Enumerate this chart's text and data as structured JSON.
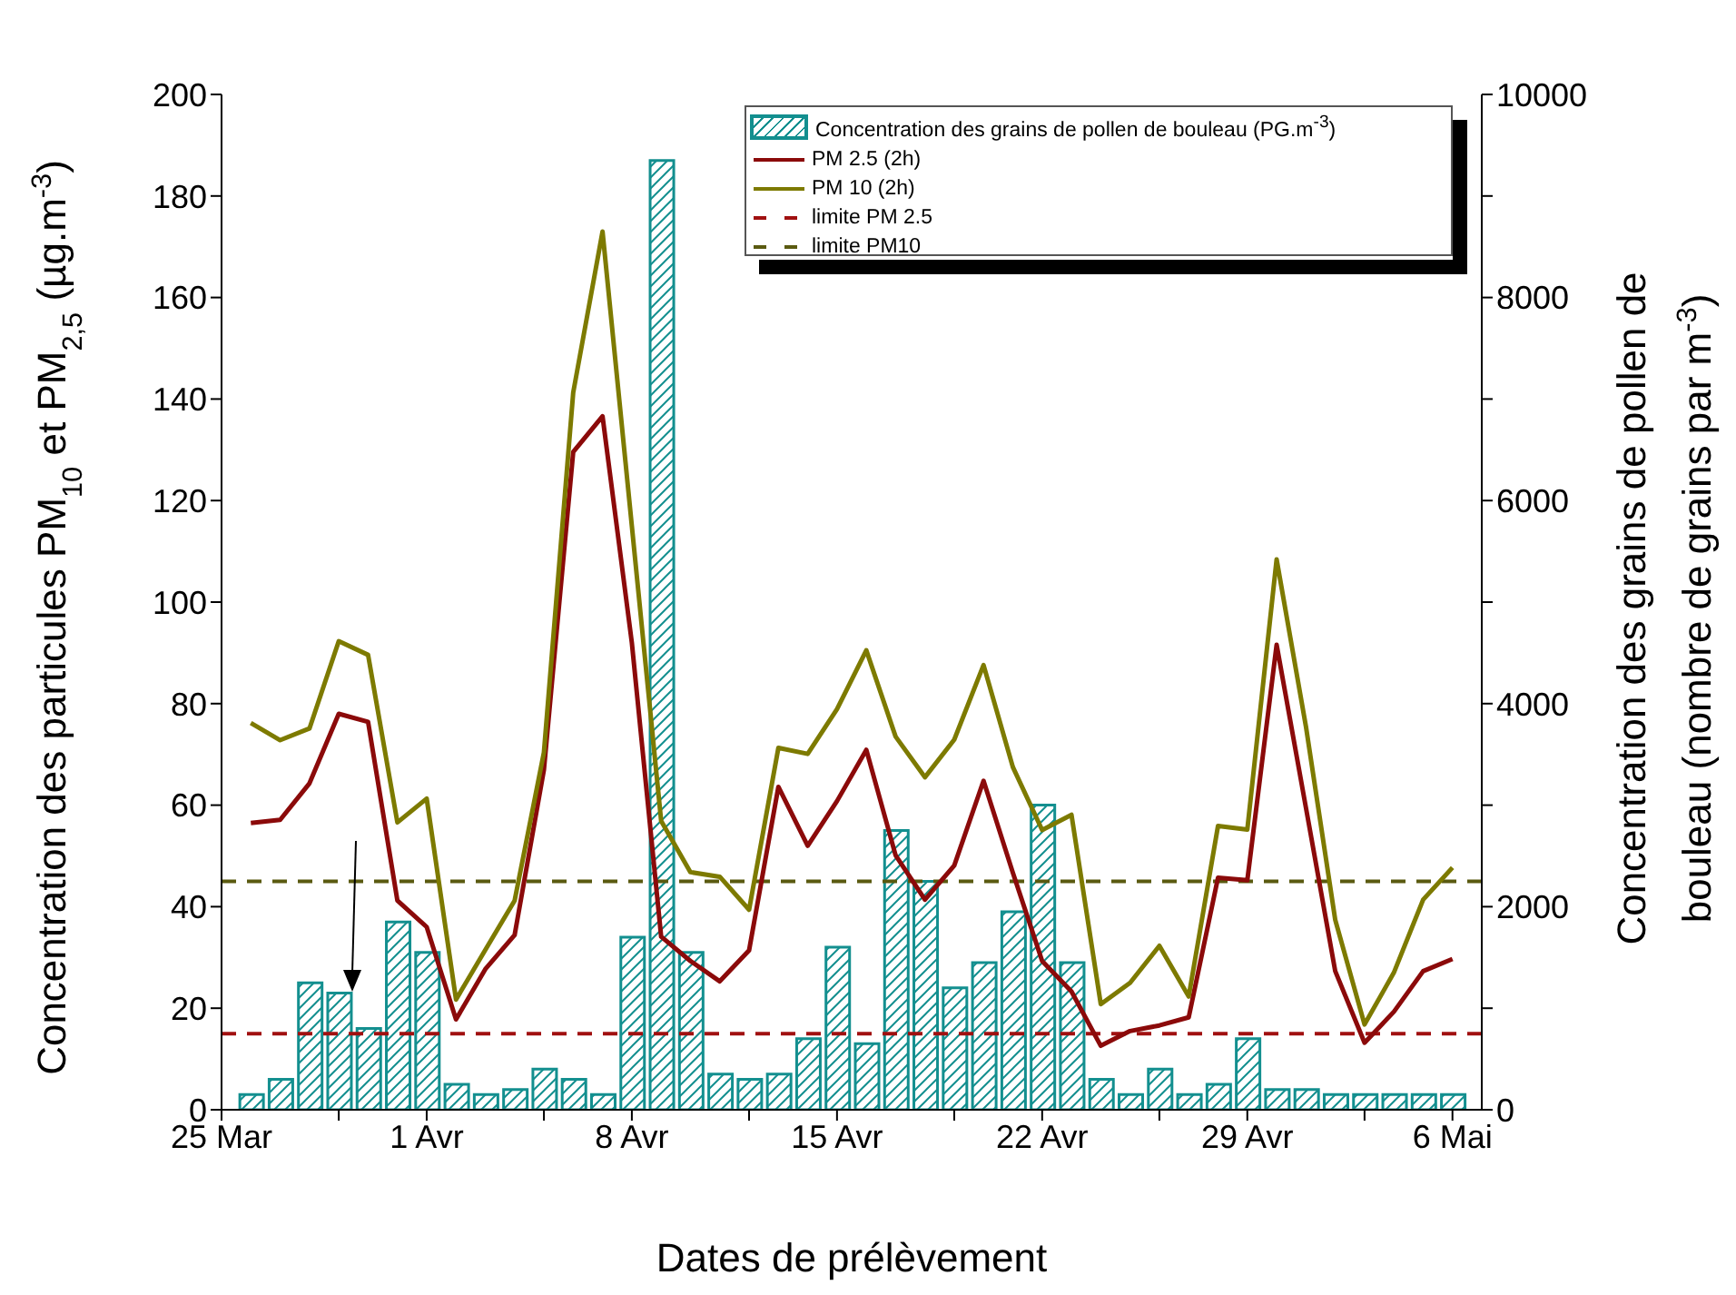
{
  "chart_data": {
    "type": "line",
    "xlabel": "Dates de prélèvement",
    "ylabel": "Concentration des particules PM$_{10}$ et PM$_{2,5}$ (µg.m$^{-3}$)",
    "y2label": "Concentration des grains de pollen de bouleau (nombre de grains par m$^{-3}$)",
    "x": [
      "--03-26",
      "--03-27",
      "--03-28",
      "--03-29",
      "--03-30",
      "--03-31",
      "--04-01",
      "--04-02",
      "--04-03",
      "--04-04",
      "--04-05",
      "--04-06",
      "--04-07",
      "--04-08",
      "--04-09",
      "--04-10",
      "--04-11",
      "--04-12",
      "--04-13",
      "--04-14",
      "--04-15",
      "--04-16",
      "--04-17",
      "--04-18",
      "--04-19",
      "--04-20",
      "--04-21",
      "--04-22",
      "--04-23",
      "--04-24",
      "--04-25",
      "--04-26",
      "--04-27",
      "--04-28",
      "--04-29",
      "--04-30",
      "--05-01",
      "--05-02",
      "--05-03",
      "--05-04",
      "--05-05",
      "--05-06"
    ],
    "series": [
      {
        "name": "Concentration des grains de pollen de bouleau (PG.m$^{-3}$)",
        "type": "bar",
        "axis": "y2",
        "color": "#138f8f",
        "values": [
          150,
          300,
          1250,
          1150,
          800,
          1850,
          1550,
          250,
          150,
          200,
          400,
          300,
          150,
          1700,
          9350,
          1550,
          350,
          300,
          350,
          700,
          1600,
          650,
          2750,
          2250,
          1200,
          1450,
          1950,
          3000,
          1450,
          300,
          150,
          400,
          150,
          250,
          700,
          200,
          200,
          150,
          150,
          150,
          150,
          150
        ]
      },
      {
        "name": "PM 2.5 (2h)",
        "color": "#8b0a0a",
        "values": [
          56.5,
          57.1,
          64.3,
          78.0,
          76.4,
          41.2,
          36.0,
          17.8,
          27.7,
          34.4,
          67.0,
          129.6,
          136.6,
          92,
          34.1,
          29.3,
          25.3,
          31.4,
          63.6,
          52.0,
          60.8,
          70.9,
          50.1,
          41.4,
          48.1,
          64.8,
          46.7,
          29.3,
          23.3,
          12.6,
          15.5,
          16.6,
          18.2,
          45.7,
          45.2,
          91.6,
          59.5,
          27.3,
          13.2,
          19.3,
          27.3,
          29.7
        ]
      },
      {
        "name": "PM 10 (2h)",
        "color": "#7d7a00",
        "values": [
          76.2,
          72.8,
          75.1,
          92.3,
          89.6,
          56.6,
          61.3,
          21.7,
          31.5,
          41.2,
          70.4,
          141.3,
          173.0,
          115,
          56.9,
          46.8,
          45.9,
          39.4,
          71.3,
          70.1,
          78.9,
          90.5,
          73.5,
          65.5,
          72.9,
          87.6,
          67.5,
          55.1,
          58.1,
          20.8,
          25.0,
          32.3,
          22.3,
          55.9,
          55.2,
          108.4,
          75.5,
          37.4,
          16.8,
          27.0,
          41.4,
          47.7
        ]
      }
    ],
    "ref_lines": [
      {
        "axis": "y",
        "value": 15,
        "label": "limite PM 2.5",
        "color": "#a01010",
        "line_style": "dashed"
      },
      {
        "axis": "y",
        "value": 45,
        "label": "limite PM10",
        "color": "#5a5a10",
        "line_style": "dashed"
      }
    ],
    "xlim": [
      "--03-25",
      "--05-07"
    ],
    "xticks": [
      {
        "value": "--03-25",
        "label": "25 Mar"
      },
      {
        "value": "--03-29",
        "label": null
      },
      {
        "value": "--04-01",
        "label": "1 Avr"
      },
      {
        "value": "--04-05",
        "label": null
      },
      {
        "value": "--04-08",
        "label": "8 Avr"
      },
      {
        "value": "--04-12",
        "label": null
      },
      {
        "value": "--04-15",
        "label": "15 Avr"
      },
      {
        "value": "--04-19",
        "label": null
      },
      {
        "value": "--04-22",
        "label": "22 Avr"
      },
      {
        "value": "--04-26",
        "label": null
      },
      {
        "value": "--04-29",
        "label": "29 Avr"
      },
      {
        "value": "--05-03",
        "label": null
      },
      {
        "value": "--05-06",
        "label": "6 Mai"
      }
    ],
    "ylim": [
      0,
      200
    ],
    "yticks": [
      0,
      20,
      40,
      60,
      80,
      100,
      120,
      140,
      160,
      180,
      200
    ],
    "y2lim": [
      0,
      10000
    ],
    "y2ticks": [
      0,
      {
        "value": 1000,
        "label": null
      },
      2000,
      {
        "value": 3000,
        "label": null
      },
      4000,
      {
        "value": 5000,
        "label": null
      },
      6000,
      {
        "value": 7000,
        "label": null
      },
      8000,
      {
        "value": 9000,
        "label": null
      },
      10000
    ],
    "legend": "top right",
    "grid": false,
    "marker": "none",
    "line_style": "solid"
  }
}
